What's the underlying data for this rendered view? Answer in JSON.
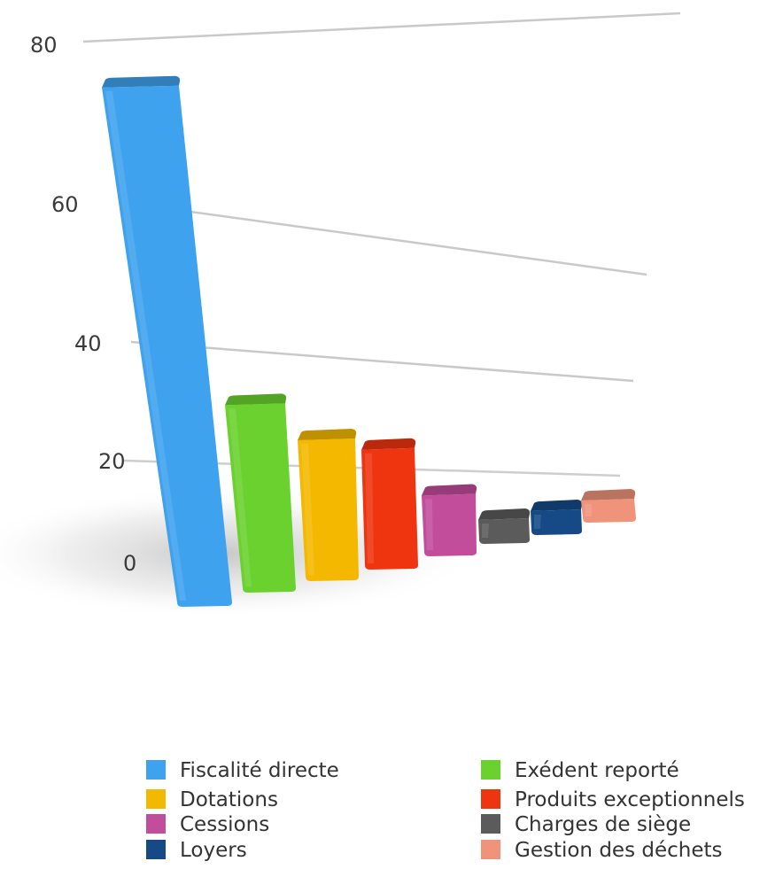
{
  "chart_data": {
    "type": "bar",
    "categories": [
      "Fiscalité directe",
      "Exédent reporté",
      "Dotations",
      "Produits exceptionnels",
      "Cessions",
      "Charges de siège",
      "Loyers",
      "Gestion des déchets"
    ],
    "values": [
      77,
      27,
      20,
      17,
      9,
      3,
      2,
      1
    ],
    "colors": [
      "#3fa2ee",
      "#6ad12f",
      "#f5b800",
      "#ee3510",
      "#c24d9b",
      "#5b5b5b",
      "#154a86",
      "#ef947a"
    ],
    "y_ticks": [
      "0",
      "20",
      "40",
      "60",
      "80"
    ],
    "ylim": [
      0,
      80
    ],
    "grid": true,
    "legend_position": "bottom",
    "style": "3d-perspective"
  }
}
